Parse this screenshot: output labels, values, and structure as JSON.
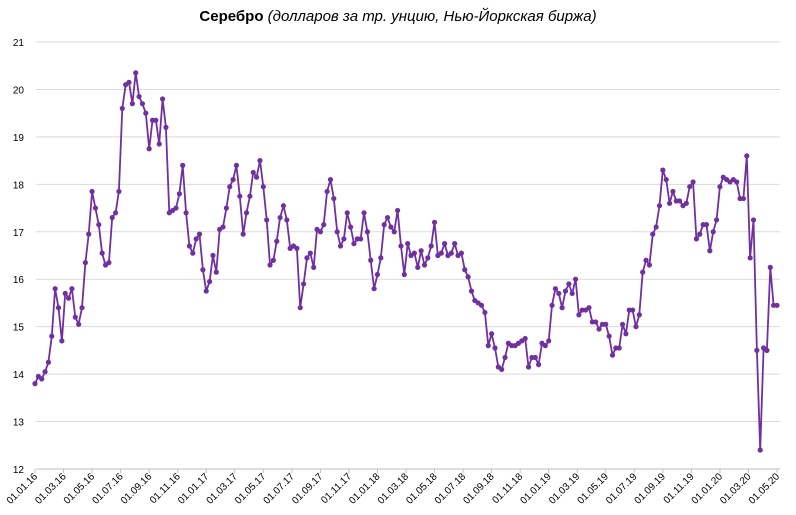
{
  "title_main": "Серебро",
  "title_sub": "(долларов за тр. унцию, Нью-Йоркская биржа)",
  "colors": {
    "series": "#7030a0",
    "grid": "#d9d9d9",
    "axis": "#bfbfbf",
    "text": "#000000"
  },
  "chart_data": {
    "type": "line",
    "title": "Серебро (долларов за тр. унцию, Нью-Йоркская биржа)",
    "xlabel": "",
    "ylabel": "",
    "ylim": [
      12,
      21
    ],
    "yticks": [
      12,
      13,
      14,
      15,
      16,
      17,
      18,
      19,
      20,
      21
    ],
    "grid": "horizontal",
    "legend": "none",
    "xtick_labels": [
      "01.01.16",
      "01.03.16",
      "01.05.16",
      "01.07.16",
      "01.09.16",
      "01.11.16",
      "01.01.17",
      "01.03.17",
      "01.05.17",
      "01.07.17",
      "01.09.17",
      "01.11.17",
      "01.01.18",
      "01.03.18",
      "01.05.18",
      "01.07.18",
      "01.09.18",
      "01.11.18",
      "01.01.19",
      "01.03.19",
      "01.05.19",
      "01.07.19",
      "01.09.19",
      "01.11.19",
      "01.01.20",
      "01.03.20",
      "01.05.20"
    ],
    "series": [
      {
        "values": [
          13.8,
          13.95,
          13.9,
          14.05,
          14.25,
          14.8,
          15.8,
          15.4,
          14.7,
          15.7,
          15.6,
          15.8,
          15.2,
          15.05,
          15.4,
          16.35,
          16.95,
          17.85,
          17.5,
          17.15,
          16.55,
          16.3,
          16.35,
          17.3,
          17.4,
          17.85,
          19.6,
          20.1,
          20.15,
          19.7,
          20.35,
          19.85,
          19.7,
          19.5,
          18.75,
          19.35,
          19.35,
          18.85,
          19.8,
          19.2,
          17.4,
          17.45,
          17.5,
          17.8,
          18.4,
          17.4,
          16.7,
          16.55,
          16.85,
          16.95,
          16.2,
          15.75,
          15.95,
          16.5,
          16.15,
          17.05,
          17.1,
          17.5,
          17.95,
          18.1,
          18.4,
          17.75,
          16.95,
          17.4,
          17.75,
          18.25,
          18.15,
          18.5,
          17.95,
          17.25,
          16.3,
          16.4,
          16.8,
          17.3,
          17.55,
          17.25,
          16.65,
          16.7,
          16.65,
          15.4,
          15.9,
          16.45,
          16.55,
          16.25,
          17.05,
          17.0,
          17.15,
          17.85,
          18.1,
          17.7,
          17.0,
          16.7,
          16.85,
          17.4,
          17.1,
          16.75,
          16.85,
          16.85,
          17.4,
          17.0,
          16.4,
          15.8,
          16.1,
          16.45,
          17.15,
          17.3,
          17.1,
          17.0,
          17.45,
          16.7,
          16.1,
          16.75,
          16.5,
          16.55,
          16.25,
          16.6,
          16.3,
          16.45,
          16.7,
          17.2,
          16.5,
          16.55,
          16.75,
          16.5,
          16.55,
          16.75,
          16.5,
          16.55,
          16.2,
          16.05,
          15.75,
          15.55,
          15.5,
          15.45,
          15.3,
          14.6,
          14.85,
          14.55,
          14.15,
          14.1,
          14.35,
          14.65,
          14.6,
          14.6,
          14.65,
          14.7,
          14.75,
          14.15,
          14.35,
          14.35,
          14.2,
          14.65,
          14.6,
          14.7,
          15.45,
          15.8,
          15.7,
          15.4,
          15.75,
          15.9,
          15.7,
          16.0,
          15.25,
          15.35,
          15.35,
          15.4,
          15.1,
          15.1,
          14.95,
          15.05,
          15.05,
          14.8,
          14.4,
          14.55,
          14.55,
          15.05,
          14.85,
          15.35,
          15.35,
          15.0,
          15.25,
          16.15,
          16.4,
          16.3,
          16.95,
          17.1,
          17.55,
          18.3,
          18.1,
          17.6,
          17.85,
          17.65,
          17.65,
          17.55,
          17.6,
          17.95,
          18.05,
          16.85,
          16.95,
          17.15,
          17.15,
          16.6,
          17.0,
          17.25,
          17.95,
          18.15,
          18.1,
          18.05,
          18.1,
          18.05,
          17.7,
          17.7,
          18.6,
          16.45,
          17.25,
          14.5,
          12.4,
          14.55,
          14.5,
          16.25,
          15.45,
          15.45
        ]
      }
    ]
  }
}
